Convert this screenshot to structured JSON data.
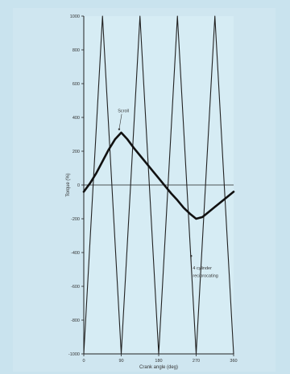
{
  "chart_data": {
    "type": "line",
    "xlabel": "Crank angle (deg)",
    "ylabel": "Torque (%)",
    "xlim": [
      0,
      360
    ],
    "ylim": [
      -1000,
      1000
    ],
    "x_ticks": [
      0,
      90,
      180,
      270,
      360
    ],
    "x_tick_labels": [
      "0",
      "90",
      "180",
      "270",
      "360"
    ],
    "y_ticks": [
      1000,
      800,
      600,
      400,
      200,
      0,
      -200,
      -400,
      -600,
      -800,
      -1000
    ],
    "y_tick_labels": [
      "1000",
      "800",
      "600",
      "400",
      "200",
      "0",
      "-200",
      "-400",
      "-600",
      "-800",
      "-1000"
    ],
    "grid": false,
    "series": [
      {
        "name": "Scroll",
        "color": "#111111",
        "x": [
          0,
          15,
          30,
          45,
          60,
          75,
          90,
          105,
          120,
          135,
          150,
          165,
          180,
          195,
          210,
          225,
          240,
          255,
          270,
          285,
          300,
          315,
          330,
          345,
          360
        ],
        "y": [
          -40,
          10,
          70,
          140,
          210,
          270,
          310,
          270,
          220,
          175,
          130,
          85,
          40,
          -5,
          -50,
          -90,
          -135,
          -170,
          -200,
          -190,
          -160,
          -130,
          -100,
          -70,
          -40
        ]
      },
      {
        "name": "4 cylinder reciprocating",
        "color": "#222222",
        "x": [
          0,
          45,
          90,
          135,
          180,
          225,
          270,
          315,
          360
        ],
        "y": [
          -1000,
          1000,
          -1000,
          1000,
          -1000,
          1000,
          -1000,
          1000,
          -1000
        ]
      }
    ],
    "annotations": [
      {
        "text": "Scroll",
        "x": 95,
        "y": 430,
        "arrow_to": [
          85,
          330
        ]
      },
      {
        "text": "4 cylinder",
        "x": 262,
        "y": -500,
        "arrow_to": [
          258,
          -420
        ]
      },
      {
        "text": "reciprocating",
        "x": 262,
        "y": -545
      }
    ]
  }
}
